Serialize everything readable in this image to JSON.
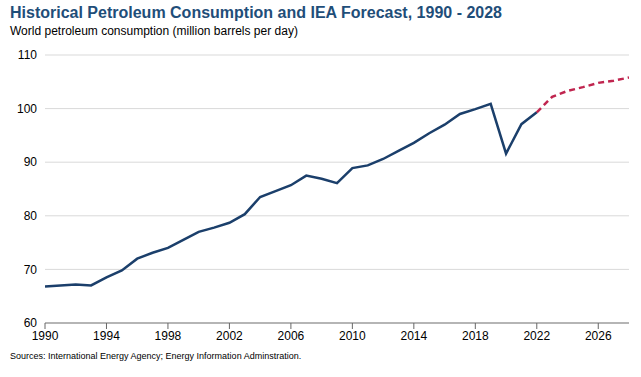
{
  "chart_data": {
    "type": "line",
    "title": "Historical Petroleum Consumption and IEA Forecast, 1990 - 2028",
    "subtitle": "World petroleum consumption (million barrels per day)",
    "source": "Sources: International Energy Agency; Energy Information Adminstration.",
    "x": [
      1990,
      1991,
      1992,
      1993,
      1994,
      1995,
      1996,
      1997,
      1998,
      1999,
      2000,
      2001,
      2002,
      2003,
      2004,
      2005,
      2006,
      2007,
      2008,
      2009,
      2010,
      2011,
      2012,
      2013,
      2014,
      2015,
      2016,
      2017,
      2018,
      2019,
      2020,
      2021,
      2022,
      2023,
      2024,
      2025,
      2026,
      2027,
      2028
    ],
    "series": [
      {
        "name": "Historical",
        "color": "#1b3f6b",
        "line_style": "solid",
        "values": [
          66.8,
          67.0,
          67.2,
          67.0,
          68.5,
          69.8,
          72.0,
          73.1,
          74.0,
          75.5,
          77.0,
          77.8,
          78.7,
          80.3,
          83.5,
          84.6,
          85.7,
          87.5,
          86.9,
          86.1,
          88.9,
          89.4,
          90.6,
          92.1,
          93.6,
          95.4,
          97.0,
          99.0,
          99.9,
          100.9,
          91.6,
          97.1,
          99.3,
          null,
          null,
          null,
          null,
          null,
          null
        ]
      },
      {
        "name": "IEA Forecast",
        "color": "#c0254f",
        "line_style": "dashed",
        "values": [
          null,
          null,
          null,
          null,
          null,
          null,
          null,
          null,
          null,
          null,
          null,
          null,
          null,
          null,
          null,
          null,
          null,
          null,
          null,
          null,
          null,
          null,
          null,
          null,
          null,
          null,
          null,
          null,
          null,
          null,
          null,
          null,
          99.3,
          102.2,
          103.3,
          104.0,
          104.8,
          105.2,
          105.8
        ]
      }
    ],
    "xlim": [
      1990,
      2028
    ],
    "xticks": [
      1990,
      1994,
      1998,
      2002,
      2006,
      2010,
      2014,
      2018,
      2022,
      2026
    ],
    "ylim": [
      60,
      110
    ],
    "yticks": [
      60,
      70,
      80,
      90,
      100,
      110
    ],
    "grid": true
  }
}
